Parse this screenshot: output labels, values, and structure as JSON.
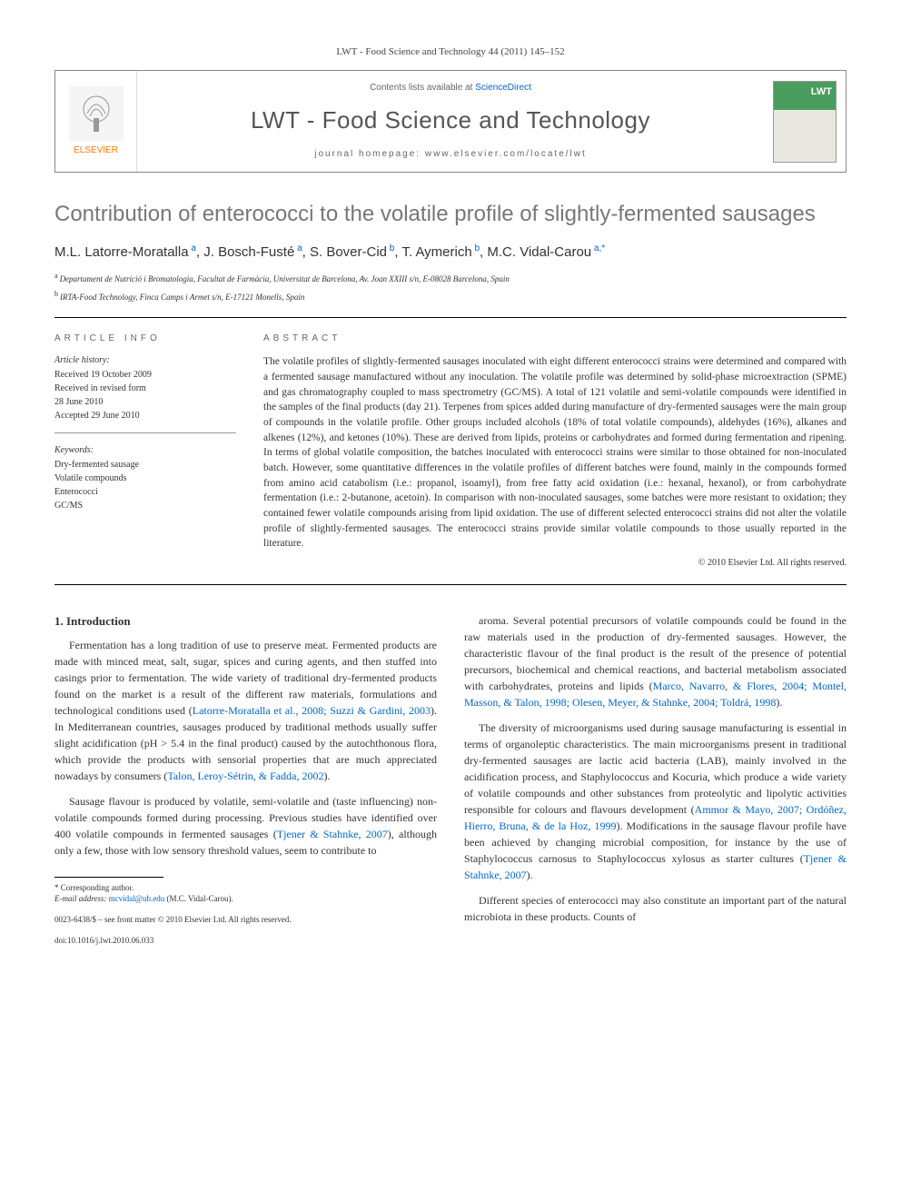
{
  "journal_ref": "LWT - Food Science and Technology 44 (2011) 145–152",
  "header": {
    "publisher": "ELSEVIER",
    "contents_prefix": "Contents lists available at ",
    "contents_link": "ScienceDirect",
    "journal_name": "LWT - Food Science and Technology",
    "homepage_prefix": "journal homepage: ",
    "homepage_url": "www.elsevier.com/locate/lwt"
  },
  "article": {
    "title": "Contribution of enterococci to the volatile profile of slightly-fermented sausages",
    "authors_html": "M.L. Latorre-Moratalla|a|, J. Bosch-Fusté|a|, S. Bover-Cid|b|, T. Aymerich|b|, M.C. Vidal-Carou|a,*|",
    "authors": [
      {
        "name": "M.L. Latorre-Moratalla",
        "sup": "a"
      },
      {
        "name": "J. Bosch-Fusté",
        "sup": "a"
      },
      {
        "name": "S. Bover-Cid",
        "sup": "b"
      },
      {
        "name": "T. Aymerich",
        "sup": "b"
      },
      {
        "name": "M.C. Vidal-Carou",
        "sup": "a,*"
      }
    ],
    "affiliations": [
      {
        "sup": "a",
        "text": "Departament de Nutrició i Bromatologia, Facultat de Farmàcia, Universitat de Barcelona, Av. Joan XXIII s/n, E-08028 Barcelona, Spain"
      },
      {
        "sup": "b",
        "text": "IRTA-Food Technology, Finca Camps i Armet s/n, E-17121 Monells, Spain"
      }
    ]
  },
  "info": {
    "heading": "ARTICLE INFO",
    "history_label": "Article history:",
    "history": [
      "Received 19 October 2009",
      "Received in revised form",
      "28 June 2010",
      "Accepted 29 June 2010"
    ],
    "keywords_label": "Keywords:",
    "keywords": [
      "Dry-fermented sausage",
      "Volatile compounds",
      "Enterococci",
      "GC/MS"
    ]
  },
  "abstract": {
    "heading": "ABSTRACT",
    "text": "The volatile profiles of slightly-fermented sausages inoculated with eight different enterococci strains were determined and compared with a fermented sausage manufactured without any inoculation. The volatile profile was determined by solid-phase microextraction (SPME) and gas chromatography coupled to mass spectrometry (GC/MS). A total of 121 volatile and semi-volatile compounds were identified in the samples of the final products (day 21). Terpenes from spices added during manufacture of dry-fermented sausages were the main group of compounds in the volatile profile. Other groups included alcohols (18% of total volatile compounds), aldehydes (16%), alkanes and alkenes (12%), and ketones (10%). These are derived from lipids, proteins or carbohydrates and formed during fermentation and ripening. In terms of global volatile composition, the batches inoculated with enterococci strains were similar to those obtained for non-inoculated batch. However, some quantitative differences in the volatile profiles of different batches were found, mainly in the compounds formed from amino acid catabolism (i.e.: propanol, isoamyl), from free fatty acid oxidation (i.e.: hexanal, hexanol), or from carbohydrate fermentation (i.e.: 2-butanone, acetoin). In comparison with non-inoculated sausages, some batches were more resistant to oxidation; they contained fewer volatile compounds arising from lipid oxidation. The use of different selected enterococci strains did not alter the volatile profile of slightly-fermented sausages. The enterococci strains provide similar volatile compounds to those usually reported in the literature.",
    "copyright": "© 2010 Elsevier Ltd. All rights reserved."
  },
  "body": {
    "section_number": "1.",
    "section_title": "Introduction",
    "left_paragraphs": [
      "Fermentation has a long tradition of use to preserve meat. Fermented products are made with minced meat, salt, sugar, spices and curing agents, and then stuffed into casings prior to fermentation. The wide variety of traditional dry-fermented products found on the market is a result of the different raw materials, formulations and technological conditions used (|Latorre-Moratalla et al., 2008; Suzzi & Gardini, 2003|). In Mediterranean countries, sausages produced by traditional methods usually suffer slight acidification (pH > 5.4 in the final product) caused by the autochthonous flora, which provide the products with sensorial properties that are much appreciated nowadays by consumers (|Talon, Leroy-Sétrin, & Fadda, 2002|).",
      "Sausage flavour is produced by volatile, semi-volatile and (taste influencing) non-volatile compounds formed during processing. Previous studies have identified over 400 volatile compounds in fermented sausages (|Tjener & Stahnke, 2007|), although only a few, those with low sensory threshold values, seem to contribute to"
    ],
    "right_paragraphs": [
      "aroma. Several potential precursors of volatile compounds could be found in the raw materials used in the production of dry-fermented sausages. However, the characteristic flavour of the final product is the result of the presence of potential precursors, biochemical and chemical reactions, and bacterial metabolism associated with carbohydrates, proteins and lipids (|Marco, Navarro, & Flores, 2004; Montel, Masson, & Talon, 1998; Olesen, Meyer, & Stahnke, 2004; Toldrá, 1998|).",
      "The diversity of microorganisms used during sausage manufacturing is essential in terms of organoleptic characteristics. The main microorganisms present in traditional dry-fermented sausages are lactic acid bacteria (LAB), mainly involved in the acidification process, and Staphylococcus and Kocuria, which produce a wide variety of volatile compounds and other substances from proteolytic and lipolytic activities responsible for colours and flavours development (|Ammor & Mayo, 2007; Ordóñez, Hierro, Bruna, & de la Hoz, 1999|). Modifications in the sausage flavour profile have been achieved by changing microbial composition, for instance by the use of Staphylococcus carnosus to Staphylococcus xylosus as starter cultures (|Tjener & Stahnke, 2007|).",
      "Different species of enterococci may also constitute an important part of the natural microbiota in these products. Counts of"
    ]
  },
  "footnote": {
    "corresponding": "* Corresponding author.",
    "email_label": "E-mail address:",
    "email": "mcvidal@ub.edu",
    "email_attribution": "(M.C. Vidal-Carou).",
    "front_matter": "0023-6438/$ – see front matter © 2010 Elsevier Ltd. All rights reserved.",
    "doi": "doi:10.1016/j.lwt.2010.06.033"
  },
  "colors": {
    "link": "#0066cc",
    "publisher_orange": "#ff7a00",
    "title_gray": "#777777",
    "cover_green": "#4a9d5f"
  }
}
